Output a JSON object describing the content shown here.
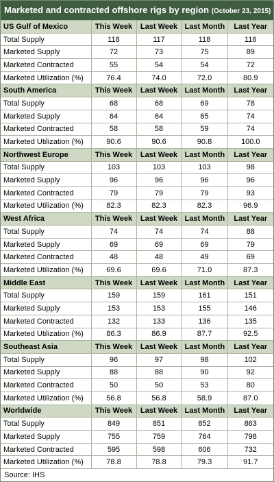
{
  "header": {
    "title": "Marketed and contracted offshore rigs by region",
    "date": "(October 23, 2015)"
  },
  "sections": [
    {
      "region": "US Gulf of Mexico",
      "columns": [
        "This Week",
        "Last Week",
        "Last Month",
        "Last Year"
      ],
      "rows": [
        {
          "label": "Total Supply",
          "values": [
            "118",
            "117",
            "118",
            "116"
          ]
        },
        {
          "label": "Marketed Supply",
          "values": [
            "72",
            "73",
            "75",
            "89"
          ]
        },
        {
          "label": "Marketed Contracted",
          "values": [
            "55",
            "54",
            "54",
            "72"
          ]
        },
        {
          "label": "Marketed Utilization (%)",
          "values": [
            "76.4",
            "74.0",
            "72.0",
            "80.9"
          ]
        }
      ]
    },
    {
      "region": "South America",
      "columns": [
        "This Week",
        "Last Week",
        "Last Month",
        "Last Year"
      ],
      "rows": [
        {
          "label": "Total Supply",
          "values": [
            "68",
            "68",
            "69",
            "78"
          ]
        },
        {
          "label": "Marketed Supply",
          "values": [
            "64",
            "64",
            "65",
            "74"
          ]
        },
        {
          "label": "Marketed Contracted",
          "values": [
            "58",
            "58",
            "59",
            "74"
          ]
        },
        {
          "label": "Marketed Utilization (%)",
          "values": [
            "90.6",
            "90.6",
            "90.8",
            "100.0"
          ]
        }
      ]
    },
    {
      "region": "Northwest Europe",
      "columns": [
        "This Week",
        "Last Week",
        "Last Month",
        "Last Year"
      ],
      "rows": [
        {
          "label": "Total Supply",
          "values": [
            "103",
            "103",
            "103",
            "98"
          ]
        },
        {
          "label": "Marketed Supply",
          "values": [
            "96",
            "96",
            "96",
            "96"
          ]
        },
        {
          "label": "Marketed Contracted",
          "values": [
            "79",
            "79",
            "79",
            "93"
          ]
        },
        {
          "label": "Marketed Utilization (%)",
          "values": [
            "82.3",
            "82.3",
            "82.3",
            "96.9"
          ]
        }
      ]
    },
    {
      "region": "West Africa",
      "columns": [
        "This Week",
        "Last Week",
        "Last Month",
        "Last Year"
      ],
      "rows": [
        {
          "label": "Total Supply",
          "values": [
            "74",
            "74",
            "74",
            "88"
          ]
        },
        {
          "label": "Marketed Supply",
          "values": [
            "69",
            "69",
            "69",
            "79"
          ]
        },
        {
          "label": "Marketed Contracted",
          "values": [
            "48",
            "48",
            "49",
            "69"
          ]
        },
        {
          "label": "Marketed Utilization (%)",
          "values": [
            "69.6",
            "69.6",
            "71.0",
            "87.3"
          ]
        }
      ]
    },
    {
      "region": "Middle East",
      "columns": [
        "This Week",
        "Last Week",
        "Last Month",
        "Last Year"
      ],
      "rows": [
        {
          "label": "Total Supply",
          "values": [
            "159",
            "159",
            "161",
            "151"
          ]
        },
        {
          "label": "Marketed Supply",
          "values": [
            "153",
            "153",
            "155",
            "146"
          ]
        },
        {
          "label": "Marketed Contracted",
          "values": [
            "132",
            "133",
            "136",
            "135"
          ]
        },
        {
          "label": "Marketed Utilization (%)",
          "values": [
            "86.3",
            "86.9",
            "87.7",
            "92.5"
          ]
        }
      ]
    },
    {
      "region": "Southeast Asia",
      "columns": [
        "This Week",
        "Last Week",
        "Last Month",
        "Last Year"
      ],
      "rows": [
        {
          "label": "Total Supply",
          "values": [
            "96",
            "97",
            "98",
            "102"
          ]
        },
        {
          "label": "Marketed Supply",
          "values": [
            "88",
            "88",
            "90",
            "92"
          ]
        },
        {
          "label": "Marketed Contracted",
          "values": [
            "50",
            "50",
            "53",
            "80"
          ]
        },
        {
          "label": "Marketed Utilization (%)",
          "values": [
            "56.8",
            "56.8",
            "58.9",
            "87.0"
          ]
        }
      ]
    },
    {
      "region": "Worldwide",
      "columns": [
        "This Week",
        "Last Week",
        "Last Month",
        "Last Year"
      ],
      "rows": [
        {
          "label": "Total Supply",
          "values": [
            "849",
            "851",
            "852",
            "863"
          ]
        },
        {
          "label": "Marketed Supply",
          "values": [
            "755",
            "759",
            "764",
            "798"
          ]
        },
        {
          "label": "Marketed Contracted",
          "values": [
            "595",
            "598",
            "606",
            "732"
          ]
        },
        {
          "label": "Marketed Utilization (%)",
          "values": [
            "78.8",
            "78.8",
            "79.3",
            "91.7"
          ]
        }
      ]
    }
  ],
  "footer": {
    "source": "Source: IHS"
  }
}
